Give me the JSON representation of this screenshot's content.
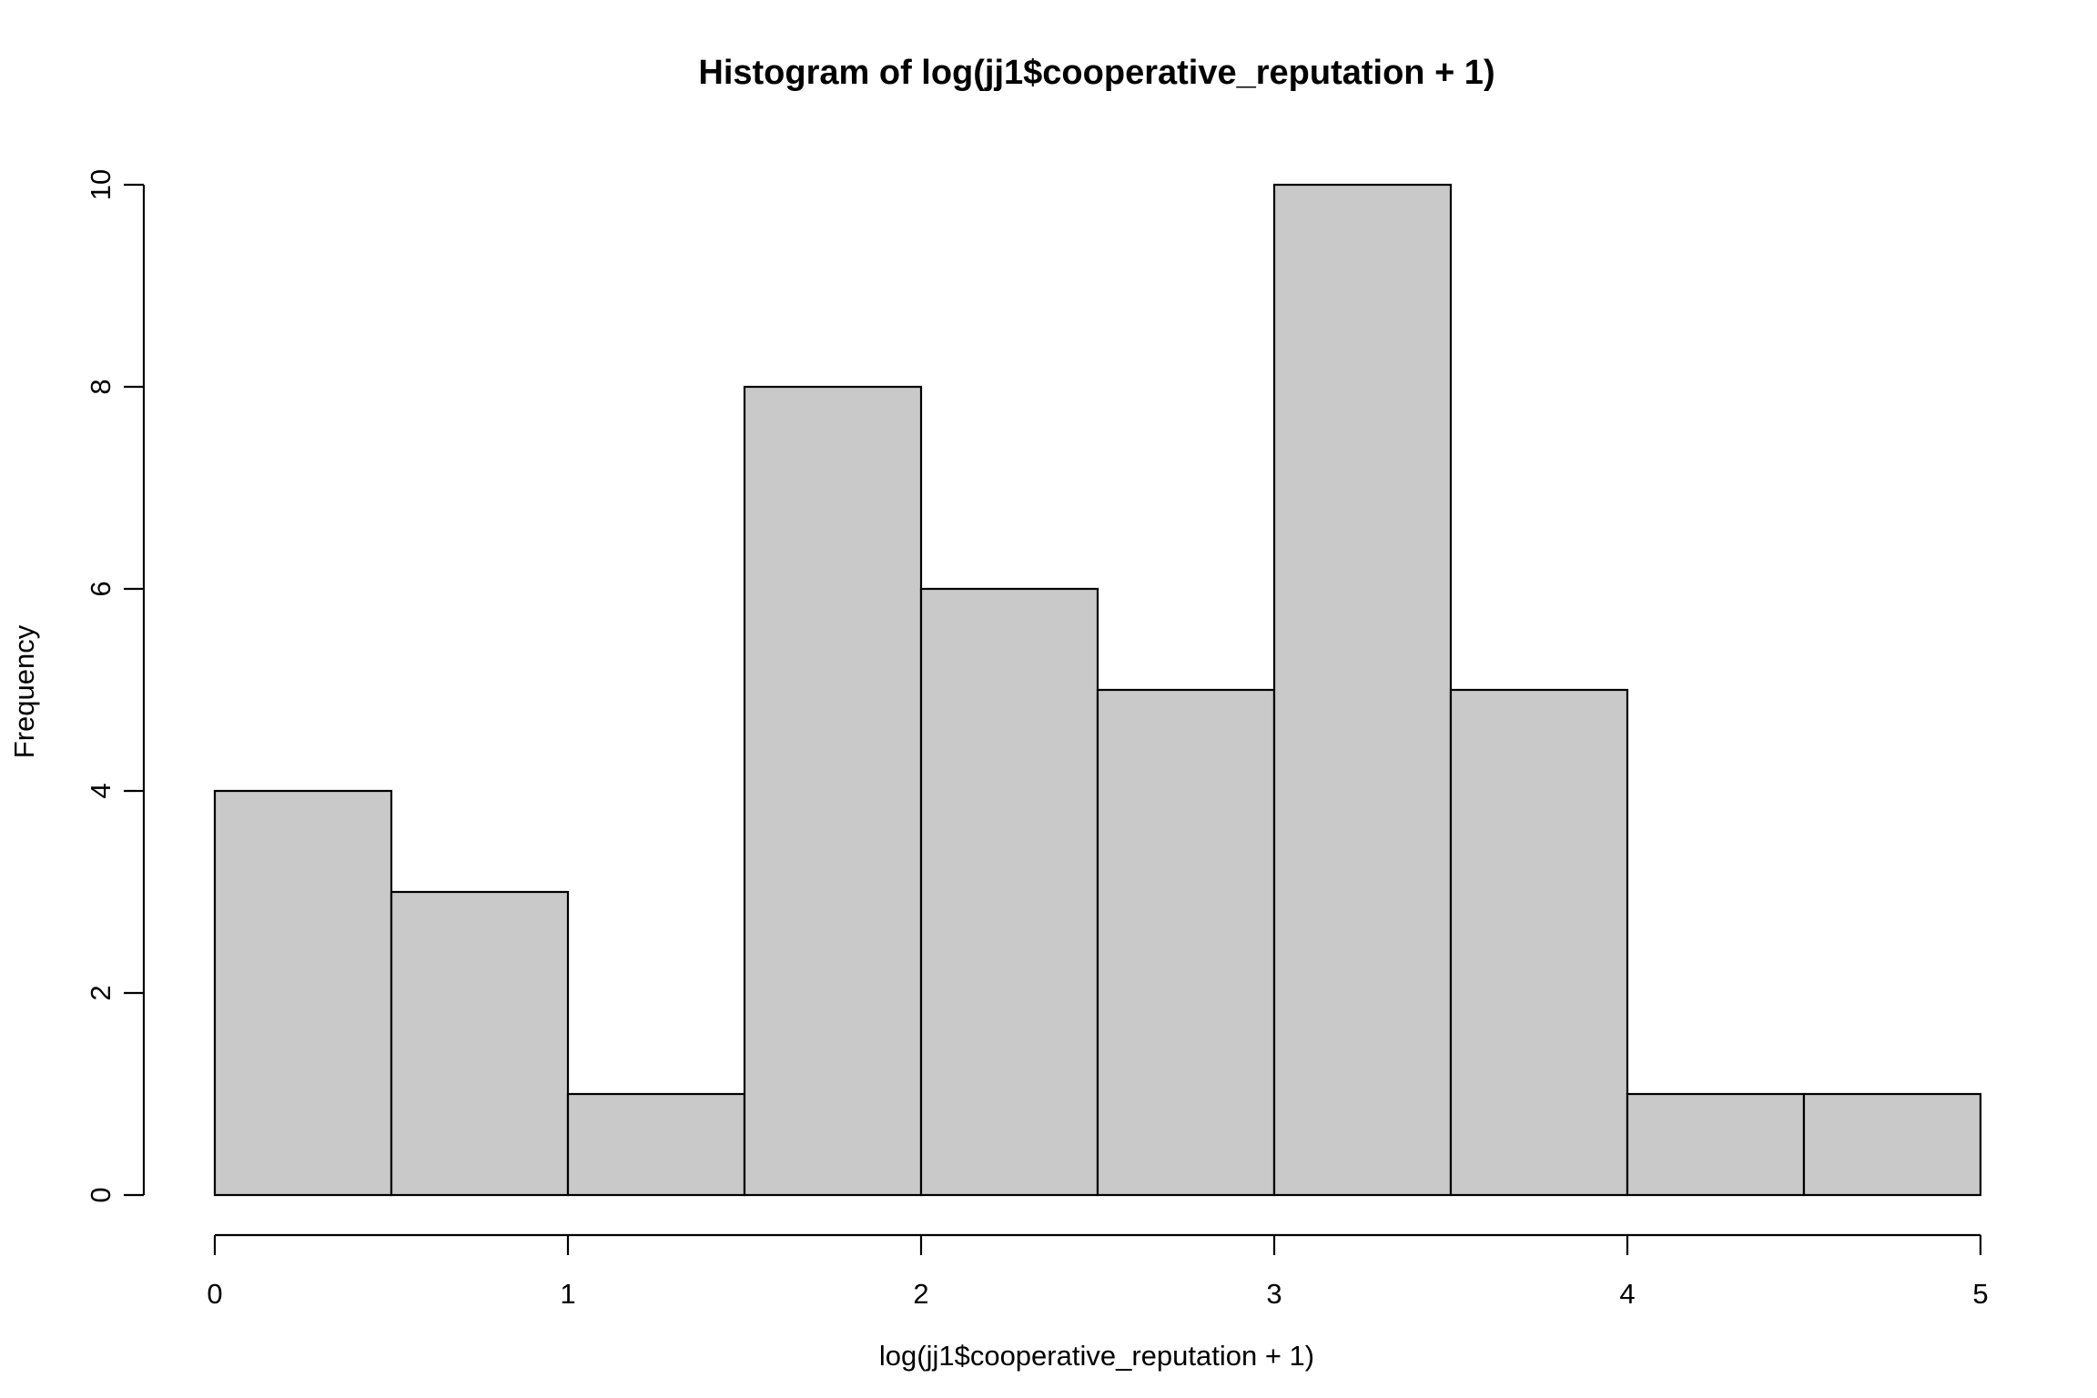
{
  "chart_data": {
    "type": "bar",
    "subtype": "histogram",
    "title": "Histogram of log(jj1$cooperative_reputation + 1)",
    "xlabel": "log(jj1$cooperative_reputation + 1)",
    "ylabel": "Frequency",
    "bin_edges": [
      0,
      0.5,
      1,
      1.5,
      2,
      2.5,
      3,
      3.5,
      4,
      4.5,
      5
    ],
    "values": [
      4,
      3,
      1,
      8,
      6,
      5,
      10,
      5,
      1,
      1
    ],
    "xlim": [
      0,
      5
    ],
    "ylim": [
      0,
      10
    ],
    "x_ticks": [
      0,
      1,
      2,
      3,
      4,
      5
    ],
    "x_tick_labels": [
      "0",
      "1",
      "2",
      "3",
      "4",
      "5"
    ],
    "y_ticks": [
      0,
      2,
      4,
      6,
      8,
      10
    ],
    "y_tick_labels": [
      "0",
      "2",
      "4",
      "6",
      "8",
      "10"
    ],
    "bar_color": "#c9c9c9",
    "edge_color": "#000000",
    "grid": false
  }
}
